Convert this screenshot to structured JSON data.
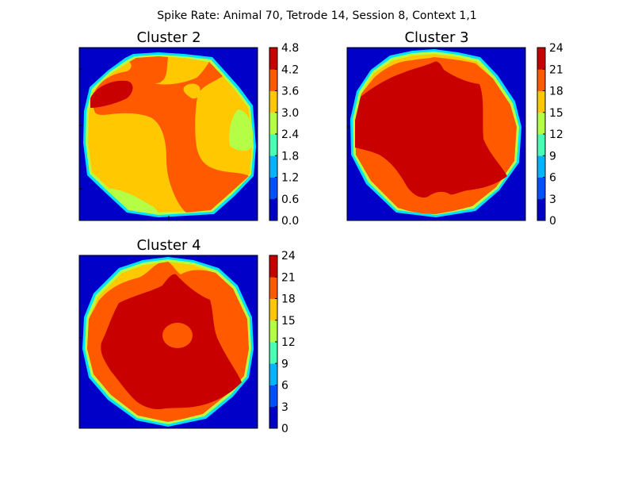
{
  "figure": {
    "suptitle": "Spike Rate: Animal 70, Tetrode 14, Session 8, Context 1,1"
  },
  "colormap": [
    "#0000c8",
    "#0050ff",
    "#00b4ff",
    "#46ffb4",
    "#b4ff46",
    "#ffc800",
    "#ff5a00",
    "#c80000"
  ],
  "chart_data": [
    {
      "type": "heatmap",
      "title": "Cluster 2",
      "colorbar_ticks": [
        "0.0",
        "0.6",
        "1.2",
        "1.8",
        "2.4",
        "3.0",
        "3.6",
        "4.2",
        "4.8"
      ],
      "levels": [
        0.0,
        0.6,
        1.2,
        1.8,
        2.4,
        3.0,
        3.6,
        4.2,
        4.8
      ],
      "vmin": 0.0,
      "vmax": 4.8
    },
    {
      "type": "heatmap",
      "title": "Cluster 3",
      "colorbar_ticks": [
        "0",
        "3",
        "6",
        "9",
        "12",
        "15",
        "18",
        "21",
        "24"
      ],
      "levels": [
        0,
        3,
        6,
        9,
        12,
        15,
        18,
        21,
        24
      ],
      "vmin": 0,
      "vmax": 24
    },
    {
      "type": "heatmap",
      "title": "Cluster 4",
      "colorbar_ticks": [
        "0",
        "3",
        "6",
        "9",
        "12",
        "15",
        "18",
        "21",
        "24"
      ],
      "levels": [
        0,
        3,
        6,
        9,
        12,
        15,
        18,
        21,
        24
      ],
      "vmin": 0,
      "vmax": 24
    }
  ]
}
